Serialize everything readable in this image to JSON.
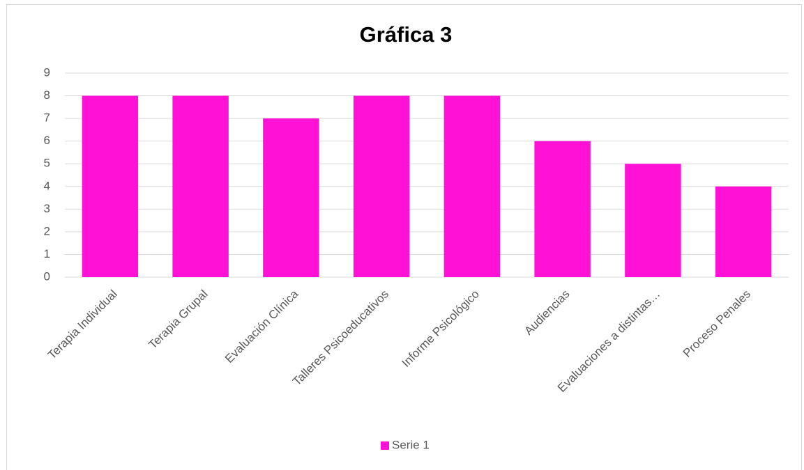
{
  "chart_data": {
    "type": "bar",
    "title": "Gráfica 3",
    "categories": [
      "Terapia Individual",
      "Terapia Grupal",
      "Evaluación Clínica",
      "Talleres Psicoeducativos",
      "Informe Psicológico",
      "Audiencias",
      "Evaluaciones a distintas…",
      "Proceso Penales"
    ],
    "series": [
      {
        "name": "Serie 1",
        "color": "#ff12d6",
        "values": [
          8,
          8,
          7,
          8,
          8,
          6,
          5,
          4
        ]
      }
    ],
    "ylim": [
      0,
      9
    ],
    "yticks": [
      0,
      1,
      2,
      3,
      4,
      5,
      6,
      7,
      8,
      9
    ],
    "grid": true,
    "legend": "bottom"
  }
}
